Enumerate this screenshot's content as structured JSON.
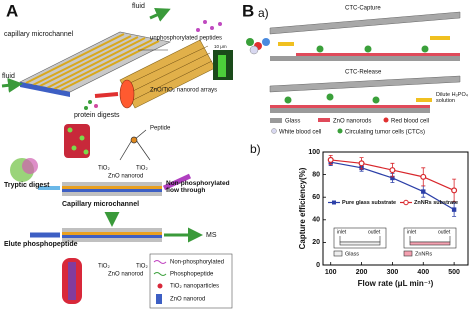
{
  "panel_a": {
    "label": "A",
    "fluid_in": "fluid",
    "fluid_out": "fluid",
    "channel": "capillary microchannel",
    "unphos": "unphosphorylated peptides",
    "arrays": "ZnO/TiO₂ nanorod arrays",
    "digests": "protein digests",
    "scale": "10 μm",
    "peptide": "Peptide",
    "tio2_a": "TiO₂",
    "tio2_b": "TiO₂",
    "zno_a": "ZnO nanorod",
    "tryptic": "Tryptic digest",
    "capillary": "Capillary microchannel",
    "nonphos_flow": "Non-phosphorylated flow through",
    "elute": "Elute phosphopeptide",
    "ms": "MS",
    "tio2_c": "TiO₂",
    "tio2_d": "TiO₂",
    "zno_b": "ZnO nanorod",
    "legend": [
      "Non-phosphorylated",
      "Phosphopeptide",
      "TiO₂ nanoparticles",
      "ZnO nanorod"
    ]
  },
  "panel_b": {
    "label": "B",
    "sub_a": "a)",
    "capture": "CTC-Capture",
    "release": "CTC-Release",
    "dilute": "Dilute H₃PO₄ solution",
    "legend": [
      "Glass",
      "ZnO nanorods",
      "Red blood cell",
      "White blood cell",
      "Circulating tumor cells (CTCs)"
    ],
    "sub_b": "b)",
    "inset_glass": {
      "inlet": "inlet",
      "outlet": "outlet",
      "label": "Glass"
    },
    "inset_zn": {
      "inlet": "inlet",
      "outlet": "outlet",
      "label": "ZnNRs"
    }
  },
  "chart_data": {
    "type": "line",
    "x_label": "Flow rate (μL min⁻¹)",
    "y_label": "Capture efficiency(%)",
    "x": [
      100,
      200,
      300,
      400,
      500
    ],
    "series": [
      {
        "name": "Pure glass substrate",
        "color": "#2b3fa8",
        "marker": "square",
        "values": [
          91,
          86,
          77,
          65,
          49
        ],
        "errors": [
          3,
          3,
          4,
          5,
          6
        ]
      },
      {
        "name": "ZnNRs substrate",
        "color": "#d8262b",
        "marker": "circle",
        "values": [
          93,
          90,
          84,
          78,
          66
        ],
        "errors": [
          4,
          5,
          6,
          8,
          10
        ]
      }
    ],
    "xlim": [
      75,
      545
    ],
    "xticks": [
      100,
      200,
      300,
      400,
      500
    ],
    "ylim": [
      0,
      100
    ],
    "yticks": [
      0,
      20,
      40,
      60,
      80,
      100
    ],
    "legend": "center"
  }
}
